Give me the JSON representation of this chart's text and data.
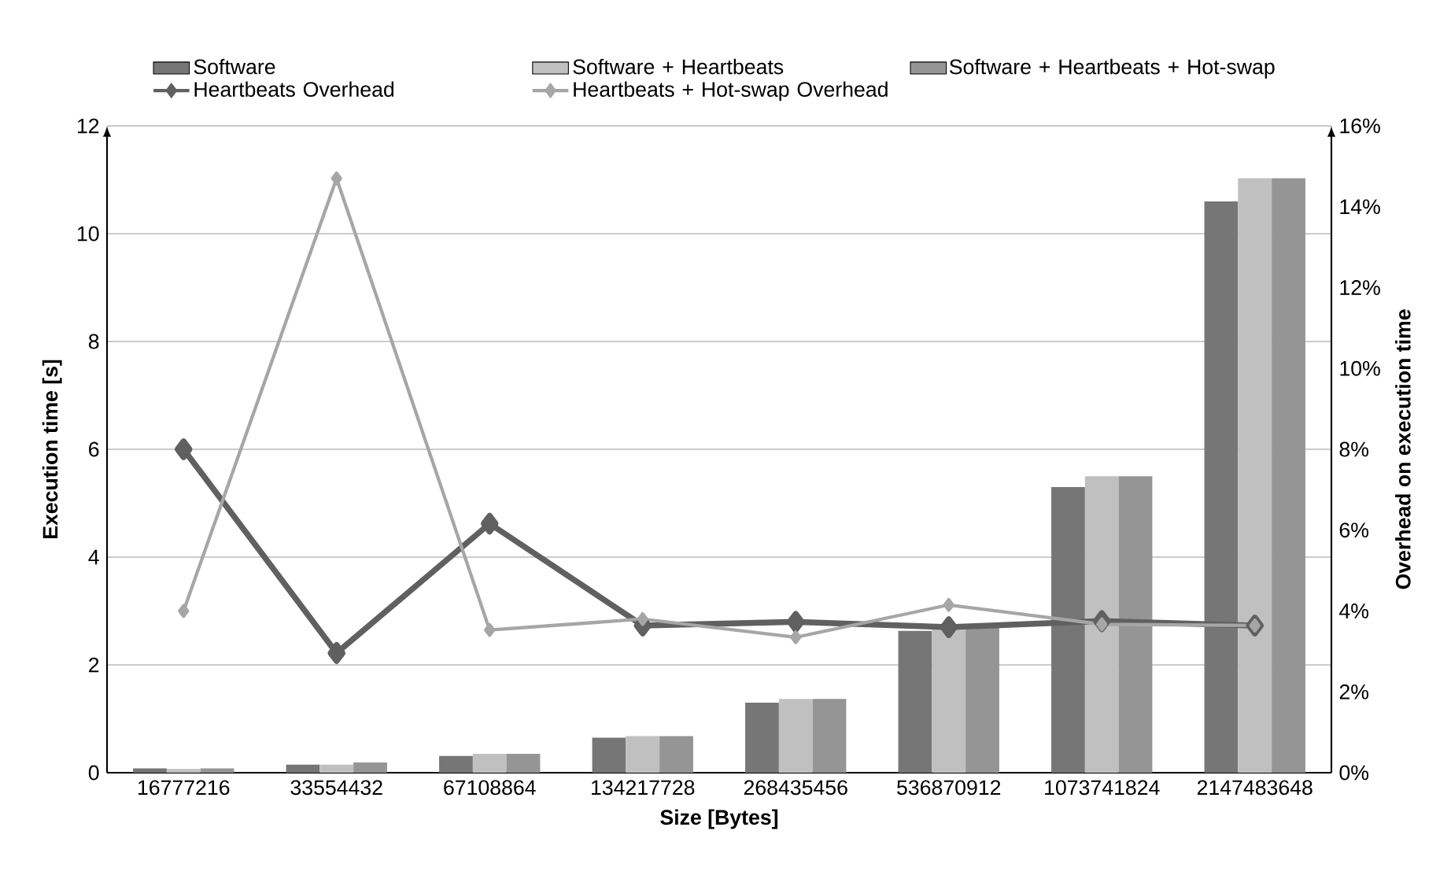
{
  "chart_data": {
    "type": "bar",
    "xlabel": "Size [Bytes]",
    "ylabel": "Execution time [s]",
    "y2label": "Overhead on execution time",
    "categories": [
      "16777216",
      "33554432",
      "67108864",
      "134217728",
      "268435456",
      "536870912",
      "1073741824",
      "2147483648"
    ],
    "series": [
      {
        "name": "Software",
        "color": "#767676",
        "values": [
          0.08,
          0.15,
          0.31,
          0.65,
          1.3,
          2.63,
          5.3,
          10.6
        ]
      },
      {
        "name": "Software + Heartbeats",
        "color": "#c0c0c0",
        "values": [
          0.07,
          0.15,
          0.35,
          0.68,
          1.37,
          2.75,
          5.5,
          11.03
        ]
      },
      {
        "name": "Software + Heartbeats + Hot-swap",
        "color": "#959595",
        "values": [
          0.08,
          0.19,
          0.35,
          0.68,
          1.37,
          2.75,
          5.5,
          11.03
        ]
      },
      {
        "name": "Heartbeats Overhead",
        "color": "#606060",
        "type": "line",
        "axis": "y2",
        "values": [
          8.0,
          2.96,
          6.16,
          3.64,
          3.73,
          3.6,
          3.75,
          3.64
        ]
      },
      {
        "name": "Heartbeats + Hot-swap Overhead",
        "color": "#a6a6a6",
        "type": "line",
        "axis": "y2",
        "values": [
          4.0,
          14.7,
          3.53,
          3.8,
          3.35,
          4.15,
          3.67,
          3.64
        ]
      }
    ],
    "ylim": [
      0,
      12
    ],
    "yticks": [
      0,
      2,
      4,
      6,
      8,
      10,
      12
    ],
    "y2lim": [
      0,
      16
    ],
    "y2ticks": [
      {
        "value": 0,
        "label": "0%"
      },
      {
        "value": 2,
        "label": "2%"
      },
      {
        "value": 4,
        "label": "4%"
      },
      {
        "value": 6,
        "label": "6%"
      },
      {
        "value": 8,
        "label": "8%"
      },
      {
        "value": 10,
        "label": "10%"
      },
      {
        "value": 12,
        "label": "12%"
      },
      {
        "value": 14,
        "label": "14%"
      },
      {
        "value": 16,
        "label": "16%"
      }
    ],
    "grid": "y",
    "legend": "top",
    "marker": "diamond",
    "line_style": "solid"
  }
}
